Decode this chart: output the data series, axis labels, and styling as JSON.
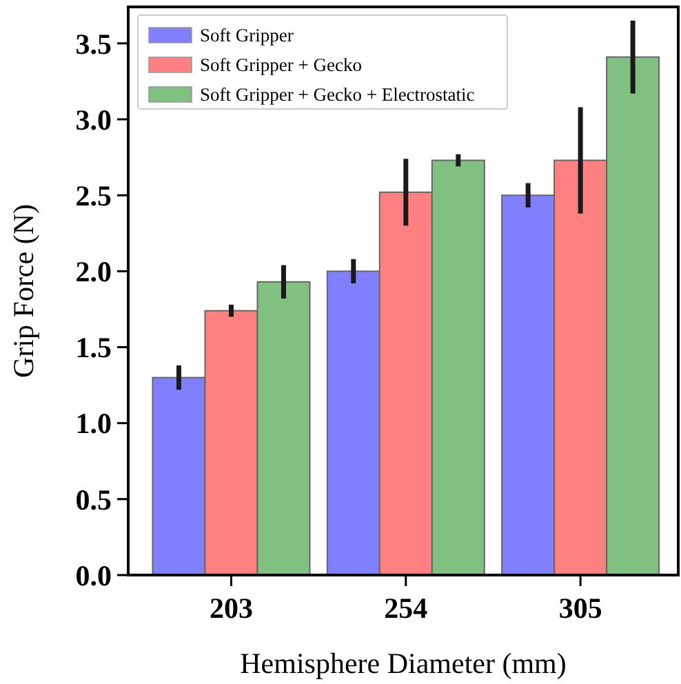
{
  "chart_data": {
    "type": "bar",
    "xlabel": "Hemisphere Diameter (mm)",
    "ylabel": "Grip Force (N)",
    "categories": [
      "203",
      "254",
      "305"
    ],
    "series": [
      {
        "name": "Soft Gripper",
        "color": "#8080ff",
        "values": [
          1.3,
          2.0,
          2.5
        ],
        "errors": [
          0.08,
          0.08,
          0.08
        ]
      },
      {
        "name": "Soft Gripper + Gecko",
        "color": "#ff8080",
        "values": [
          1.74,
          2.52,
          2.73
        ],
        "errors": [
          0.04,
          0.22,
          0.35
        ]
      },
      {
        "name": "Soft Gripper + Gecko + Electrostatic",
        "color": "#80c080",
        "values": [
          1.93,
          2.73,
          3.41
        ],
        "errors": [
          0.11,
          0.04,
          0.24
        ]
      }
    ],
    "ylim": [
      0,
      3.74
    ],
    "yticks": [
      {
        "value": 0,
        "label": "0.0"
      },
      {
        "value": 0.5,
        "label": "0.5"
      },
      {
        "value": 1,
        "label": "1.0"
      },
      {
        "value": 1.5,
        "label": "1.5"
      },
      {
        "value": 2,
        "label": "2.0"
      },
      {
        "value": 2.5,
        "label": "2.5"
      },
      {
        "value": 3,
        "label": "3.0"
      },
      {
        "value": 3.5,
        "label": "3.5"
      }
    ],
    "grid": false,
    "legend": "top left"
  }
}
